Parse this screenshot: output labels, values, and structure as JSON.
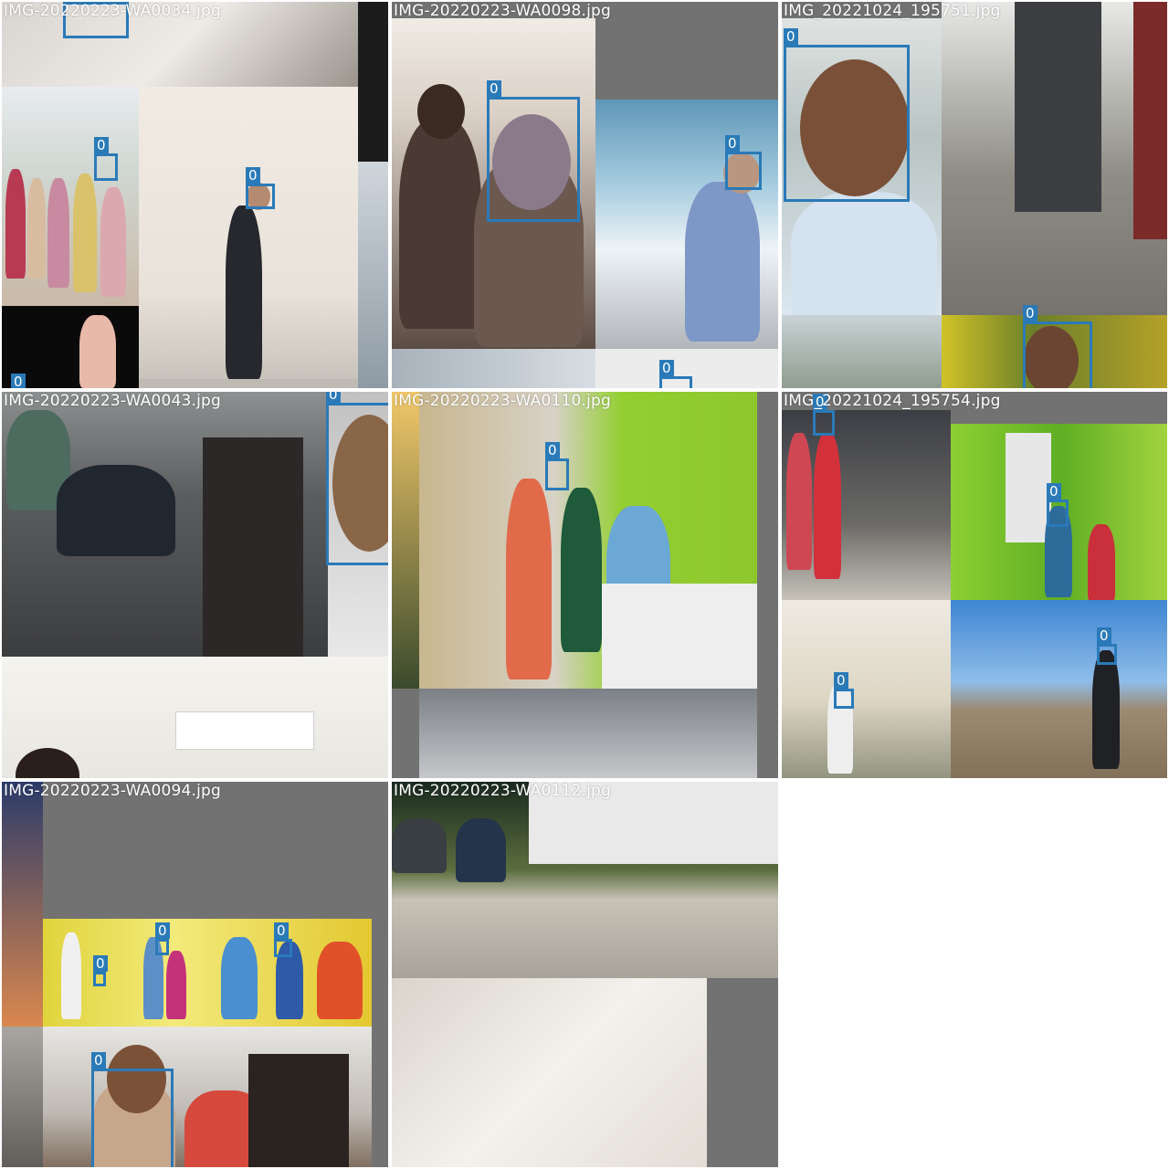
{
  "grid": {
    "background": "#ffffff",
    "tiles": [
      {
        "label": "IMG-20220223-WA0034.jpg"
      },
      {
        "label": "IMG-20220223-WA0098.jpg"
      },
      {
        "label": "IMG_20221024_195751.jpg"
      },
      {
        "label": "IMG-20220223-WA0043.jpg"
      },
      {
        "label": "IMG-20220223-WA0110.jpg"
      },
      {
        "label": "IMG_20221024_195754.jpg"
      },
      {
        "label": "IMG-20220223-WA0094.jpg"
      },
      {
        "label": "IMG-20220223-WA0112.jpg"
      }
    ]
  },
  "annotation": {
    "class_id": "0",
    "box_color": "#2a7ab8",
    "label_color": "#ffffff"
  }
}
